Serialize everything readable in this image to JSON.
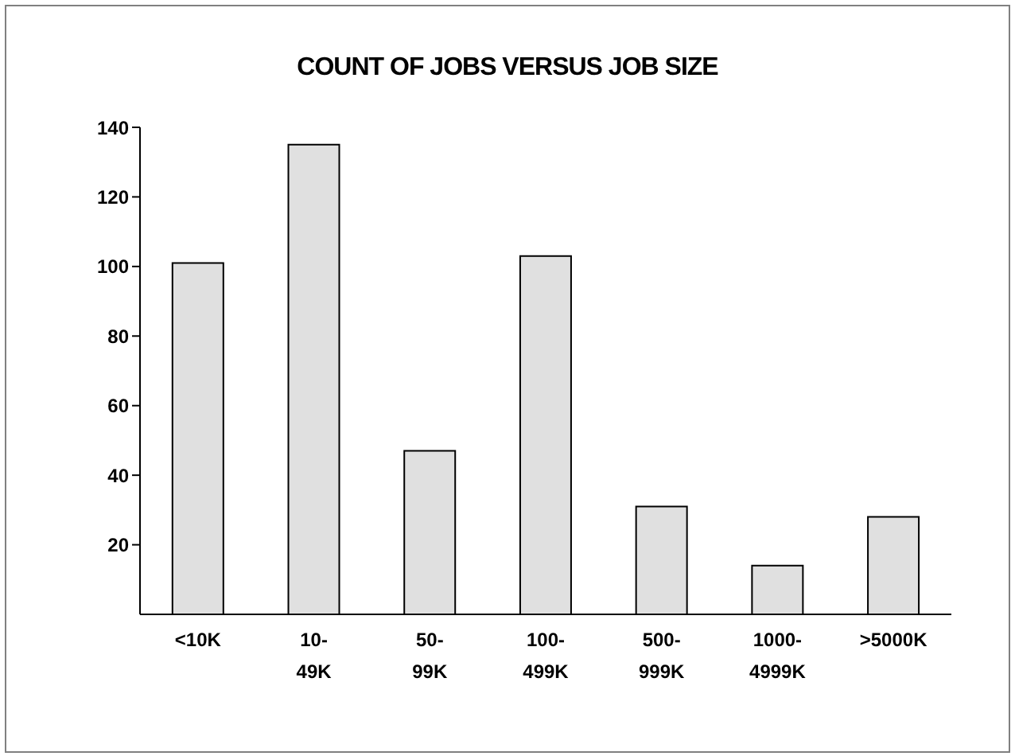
{
  "chart_data": {
    "type": "bar",
    "title": "COUNT OF JOBS VERSUS JOB SIZE",
    "categories": [
      "<10K",
      "10-49K",
      "50-99K",
      "100-499K",
      "500-999K",
      "1000-4999K",
      ">5000K"
    ],
    "values": [
      101,
      135,
      47,
      103,
      31,
      14,
      28
    ],
    "color": "#e0e0e0",
    "ylim": [
      0,
      140
    ],
    "yticks": [
      20,
      40,
      60,
      80,
      100,
      120,
      140
    ],
    "grid": false,
    "legend": false
  }
}
